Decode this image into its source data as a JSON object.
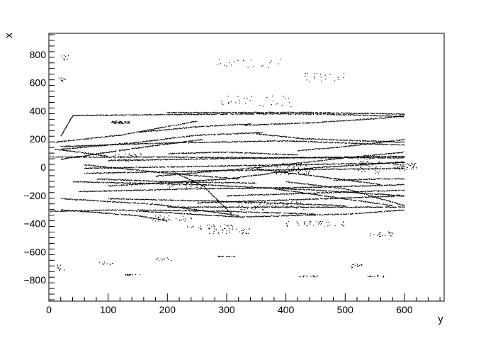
{
  "chart_data": {
    "type": "scatter",
    "title": "",
    "xlabel": "y",
    "ylabel": "x",
    "xlim": [
      0,
      667
    ],
    "ylim": [
      -950,
      950
    ],
    "grid": false,
    "legend": "none",
    "x_ticks": [
      0,
      100,
      200,
      300,
      400,
      500,
      600
    ],
    "x_tick_labels": [
      "0",
      "100",
      "200",
      "300",
      "400",
      "500",
      "600"
    ],
    "y_ticks": [
      800,
      600,
      400,
      200,
      0,
      -200,
      -400,
      -600,
      -800
    ],
    "y_tick_labels": [
      "800",
      "600",
      "400",
      "200",
      "0",
      "−200",
      "−400",
      "−600",
      "−800"
    ],
    "marker_color": "#000000",
    "tracks": [
      [
        [
          20,
          225
        ],
        [
          40,
          370
        ],
        [
          350,
          382
        ],
        [
          460,
          380
        ],
        [
          600,
          362
        ]
      ],
      [
        [
          200,
          390
        ],
        [
          420,
          392
        ],
        [
          600,
          380
        ]
      ],
      [
        [
          10,
          180
        ],
        [
          120,
          230
        ],
        [
          250,
          330
        ]
      ],
      [
        [
          20,
          150
        ],
        [
          200,
          175
        ],
        [
          400,
          190
        ],
        [
          600,
          160
        ]
      ],
      [
        [
          350,
          240
        ],
        [
          430,
          205
        ],
        [
          600,
          180
        ]
      ],
      [
        [
          20,
          130
        ],
        [
          150,
          180
        ],
        [
          250,
          230
        ],
        [
          360,
          250
        ]
      ],
      [
        [
          100,
          50
        ],
        [
          300,
          65
        ],
        [
          600,
          80
        ]
      ],
      [
        [
          60,
          -5
        ],
        [
          200,
          5
        ],
        [
          400,
          20
        ],
        [
          600,
          35
        ]
      ],
      [
        [
          60,
          -40
        ],
        [
          300,
          -20
        ],
        [
          500,
          -10
        ],
        [
          600,
          -5
        ]
      ],
      [
        [
          100,
          -130
        ],
        [
          300,
          -80
        ],
        [
          450,
          0
        ],
        [
          600,
          40
        ]
      ],
      [
        [
          180,
          -60
        ],
        [
          350,
          0
        ],
        [
          500,
          70
        ],
        [
          600,
          110
        ]
      ],
      [
        [
          40,
          -100
        ],
        [
          250,
          -120
        ],
        [
          450,
          -160
        ],
        [
          600,
          -200
        ]
      ],
      [
        [
          20,
          -220
        ],
        [
          180,
          -260
        ],
        [
          320,
          -340
        ]
      ],
      [
        [
          0,
          -310
        ],
        [
          120,
          -300
        ],
        [
          200,
          -320
        ],
        [
          320,
          -350
        ],
        [
          500,
          -330
        ],
        [
          600,
          -300
        ]
      ],
      [
        [
          20,
          -300
        ],
        [
          150,
          -340
        ],
        [
          200,
          -380
        ]
      ],
      [
        [
          200,
          -280
        ],
        [
          400,
          -280
        ],
        [
          600,
          -280
        ]
      ],
      [
        [
          250,
          -250
        ],
        [
          400,
          -230
        ],
        [
          600,
          -200
        ]
      ],
      [
        [
          300,
          -200
        ],
        [
          450,
          -180
        ],
        [
          600,
          -160
        ]
      ],
      [
        [
          100,
          -220
        ],
        [
          300,
          -240
        ],
        [
          500,
          -270
        ]
      ],
      [
        [
          50,
          -170
        ],
        [
          250,
          -150
        ],
        [
          450,
          -140
        ],
        [
          600,
          -120
        ]
      ],
      [
        [
          210,
          -30
        ],
        [
          260,
          -130
        ],
        [
          310,
          -340
        ]
      ],
      [
        [
          150,
          -300
        ],
        [
          300,
          -310
        ],
        [
          450,
          -330
        ]
      ],
      [
        [
          10,
          130
        ],
        [
          50,
          110
        ],
        [
          100,
          80
        ]
      ],
      [
        [
          400,
          -100
        ],
        [
          500,
          -150
        ],
        [
          600,
          -270
        ]
      ],
      [
        [
          350,
          -10
        ],
        [
          450,
          -60
        ],
        [
          560,
          -120
        ]
      ],
      [
        [
          60,
          20
        ],
        [
          200,
          -40
        ],
        [
          320,
          -80
        ]
      ],
      [
        [
          80,
          -80
        ],
        [
          200,
          -100
        ],
        [
          350,
          -110
        ]
      ],
      [
        [
          480,
          -90
        ],
        [
          560,
          -80
        ],
        [
          600,
          -80
        ]
      ],
      [
        [
          380,
          -150
        ],
        [
          480,
          -210
        ],
        [
          580,
          -270
        ]
      ],
      [
        [
          0,
          75
        ],
        [
          200,
          75
        ],
        [
          350,
          70
        ],
        [
          560,
          70
        ],
        [
          600,
          70
        ]
      ],
      [
        [
          20,
          60
        ],
        [
          150,
          140
        ],
        [
          260,
          200
        ]
      ],
      [
        [
          330,
          300
        ],
        [
          450,
          320
        ],
        [
          560,
          350
        ],
        [
          600,
          370
        ]
      ],
      [
        [
          150,
          250
        ],
        [
          250,
          290
        ],
        [
          340,
          310
        ]
      ],
      [
        [
          420,
          120
        ],
        [
          500,
          150
        ],
        [
          600,
          200
        ]
      ],
      [
        [
          200,
          100
        ],
        [
          300,
          110
        ],
        [
          420,
          90
        ]
      ]
    ],
    "clusters": [
      [
        [
          120,
          320
        ],
        30,
        20,
        60
      ],
      [
        [
          600,
          10
        ],
        40,
        60,
        60
      ],
      [
        [
          540,
          20
        ],
        40,
        120,
        40
      ],
      [
        [
          410,
          -10
        ],
        60,
        80,
        70
      ],
      [
        [
          380,
          -270
        ],
        120,
        60,
        60
      ],
      [
        [
          450,
          -400
        ],
        100,
        40,
        40
      ],
      [
        [
          270,
          -420
        ],
        80,
        30,
        30
      ],
      [
        [
          200,
          -360
        ],
        80,
        40,
        30
      ],
      [
        [
          130,
          70
        ],
        60,
        60,
        40
      ],
      [
        [
          300,
          -630
        ],
        30,
        5,
        20
      ],
      [
        [
          140,
          -760
        ],
        30,
        5,
        15
      ],
      [
        [
          440,
          -770
        ],
        40,
        10,
        15
      ],
      [
        [
          550,
          -770
        ],
        30,
        10,
        15
      ],
      [
        [
          520,
          -700
        ],
        20,
        40,
        15
      ],
      [
        [
          350,
          470
        ],
        120,
        80,
        30
      ],
      [
        [
          330,
          740
        ],
        120,
        60,
        20
      ],
      [
        [
          460,
          640
        ],
        80,
        60,
        20
      ],
      [
        [
          20,
          -710
        ],
        15,
        40,
        10
      ],
      [
        [
          25,
          780
        ],
        15,
        40,
        10
      ],
      [
        [
          20,
          630
        ],
        15,
        40,
        10
      ],
      [
        [
          230,
          -120
        ],
        60,
        40,
        40
      ],
      [
        [
          300,
          -450
        ],
        80,
        40,
        30
      ],
      [
        [
          100,
          -680
        ],
        40,
        20,
        10
      ],
      [
        [
          560,
          -470
        ],
        40,
        40,
        20
      ],
      [
        [
          200,
          -650
        ],
        40,
        30,
        10
      ]
    ]
  }
}
